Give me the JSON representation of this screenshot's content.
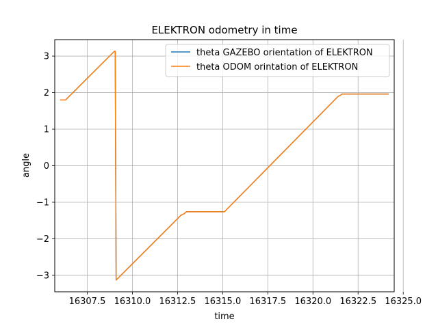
{
  "chart_data": {
    "type": "line",
    "title": "ELEKTRON odometry in time",
    "xlabel": "time",
    "ylabel": "angle",
    "xlim": [
      16305.7,
      16324.5
    ],
    "ylim": [
      -3.45,
      3.45
    ],
    "xticks": [
      16307.5,
      16310.0,
      16312.5,
      16315.0,
      16317.5,
      16320.0,
      16322.5,
      16325.0
    ],
    "xtick_labels": [
      "16307.5",
      "16310.0",
      "16312.5",
      "16315.0",
      "16317.5",
      "16320.0",
      "16322.5",
      "16325.0"
    ],
    "yticks": [
      -3,
      -2,
      -1,
      0,
      1,
      2,
      3
    ],
    "ytick_labels": [
      "−3",
      "−2",
      "−1",
      "0",
      "1",
      "2",
      "3"
    ],
    "grid": true,
    "legend_position": "upper-right",
    "series": [
      {
        "name": "theta GAZEBO orientation of ELEKTRON",
        "color": "#1f77b4",
        "x": [
          16306.0,
          16306.3,
          16309.0,
          16309.05,
          16309.1,
          16312.7,
          16312.85,
          16313.0,
          16315.1,
          16321.4,
          16321.5,
          16321.6,
          16324.2
        ],
        "y": [
          1.8,
          1.8,
          3.13,
          3.13,
          -3.13,
          -1.35,
          -1.32,
          -1.26,
          -1.26,
          1.9,
          1.92,
          1.96,
          1.96
        ]
      },
      {
        "name": "theta ODOM orintation of ELEKTRON",
        "color": "#ff7f0e",
        "x": [
          16306.0,
          16306.3,
          16309.0,
          16309.05,
          16309.1,
          16312.7,
          16312.85,
          16313.0,
          16315.1,
          16321.4,
          16321.5,
          16321.6,
          16324.2
        ],
        "y": [
          1.8,
          1.8,
          3.13,
          3.13,
          -3.13,
          -1.35,
          -1.32,
          -1.26,
          -1.26,
          1.9,
          1.92,
          1.96,
          1.96
        ]
      }
    ]
  }
}
